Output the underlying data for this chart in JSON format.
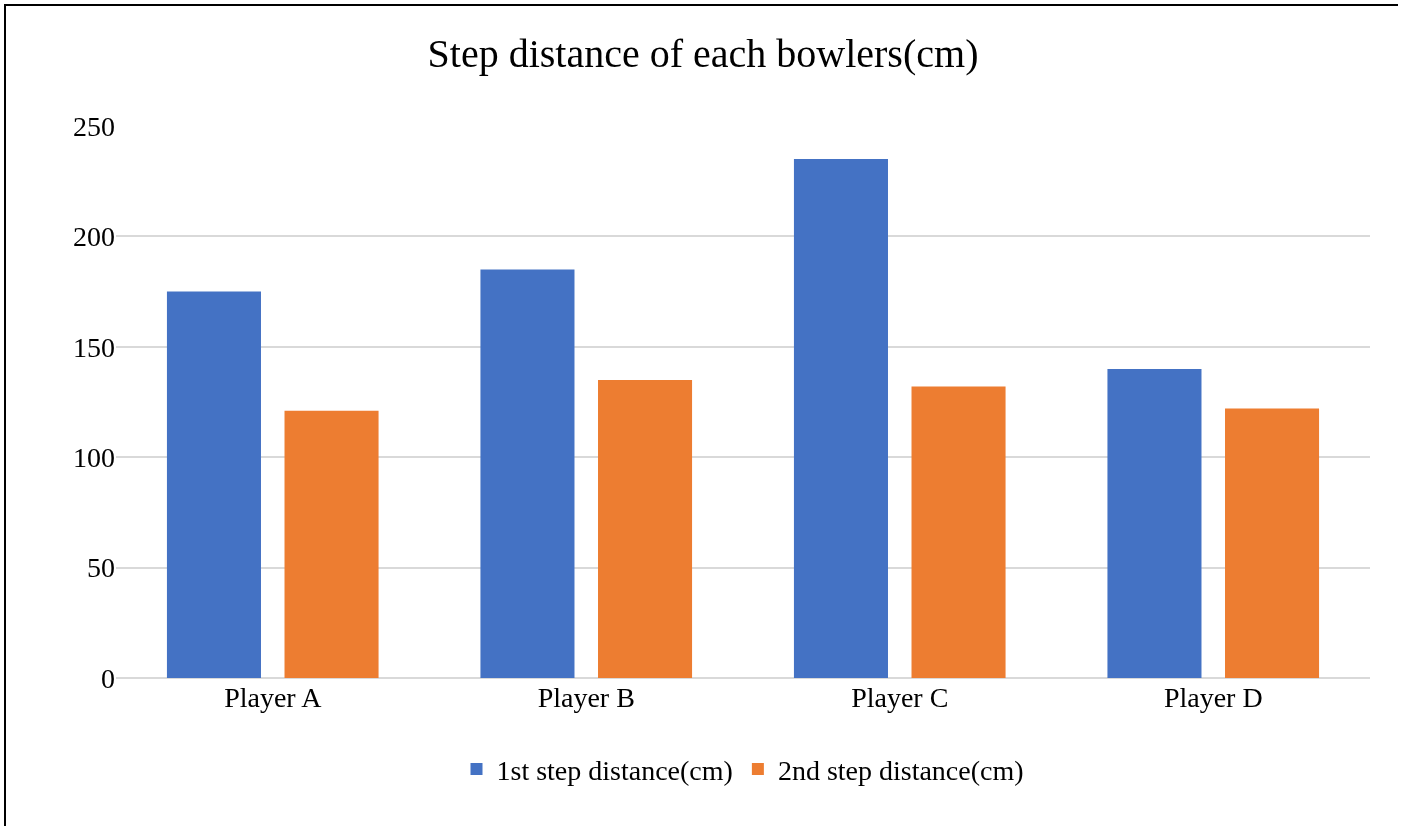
{
  "chart_data": {
    "type": "bar",
    "title": "Step distance of each bowlers(cm)",
    "categories": [
      "Player A",
      "Player B",
      "Player C",
      "Player D"
    ],
    "series": [
      {
        "name": "1st step distance(cm)",
        "color": "#4472c4",
        "values": [
          175,
          185,
          235,
          140
        ]
      },
      {
        "name": "2nd step distance(cm)",
        "color": "#ed7d31",
        "values": [
          121,
          135,
          132,
          122
        ]
      }
    ],
    "ylim": [
      0,
      250
    ],
    "yticks": [
      0,
      50,
      100,
      150,
      200,
      250
    ],
    "grid": "y",
    "legend": "bottom"
  }
}
